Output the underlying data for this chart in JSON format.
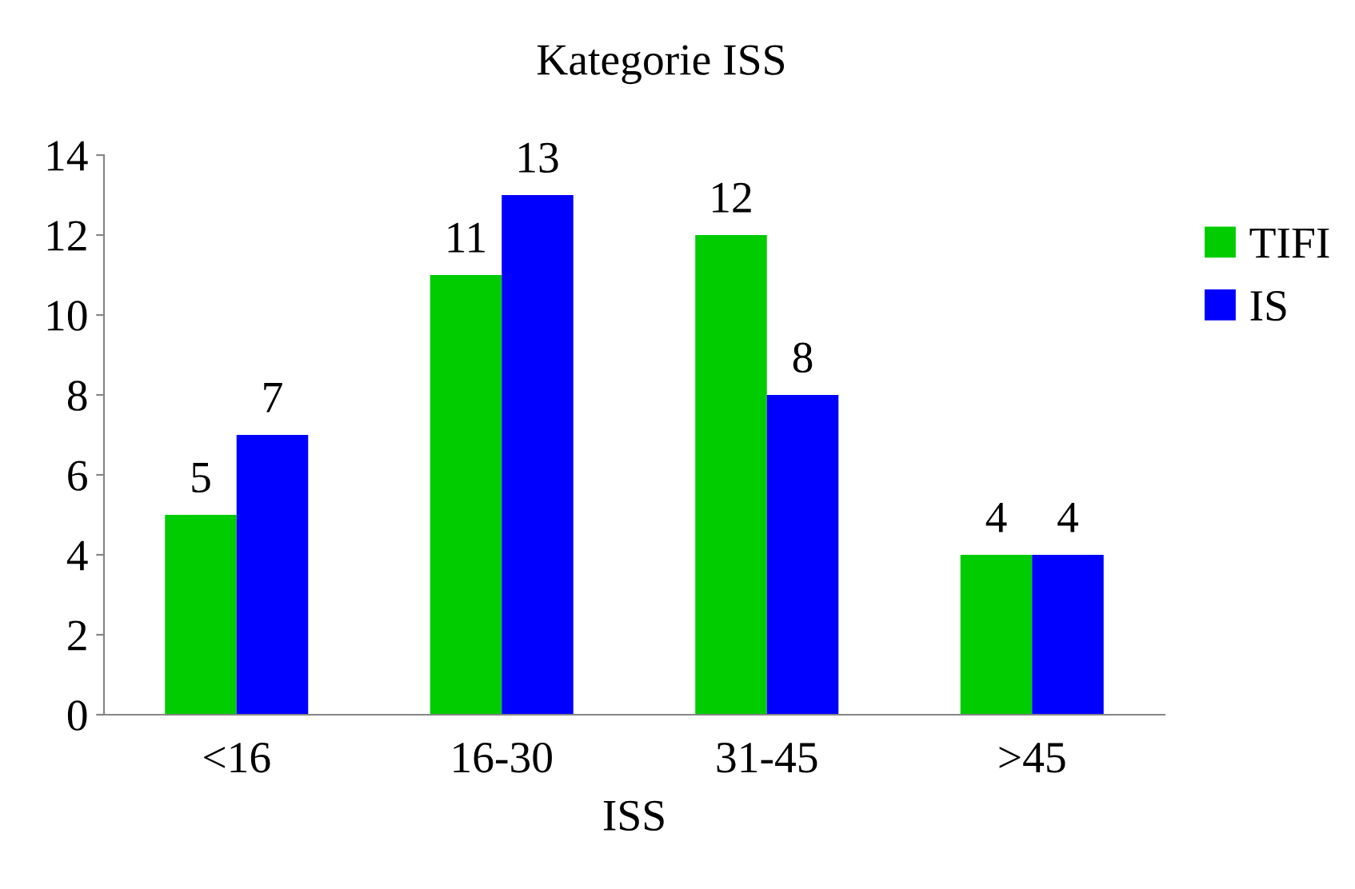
{
  "chart_data": {
    "type": "bar",
    "title": "Kategorie ISS",
    "xlabel": "ISS",
    "categories": [
      "<16",
      "16-30",
      "31-45",
      ">45"
    ],
    "series": [
      {
        "name": "TIFI",
        "color": "#00cc00",
        "values": [
          5,
          11,
          12,
          4
        ]
      },
      {
        "name": "IS",
        "color": "#0000ff",
        "values": [
          7,
          13,
          8,
          4
        ]
      }
    ],
    "ylim": [
      0,
      14
    ],
    "yticks": [
      0,
      2,
      4,
      6,
      8,
      10,
      12,
      14
    ],
    "grid": false,
    "legend": "right",
    "data_labels": true
  }
}
